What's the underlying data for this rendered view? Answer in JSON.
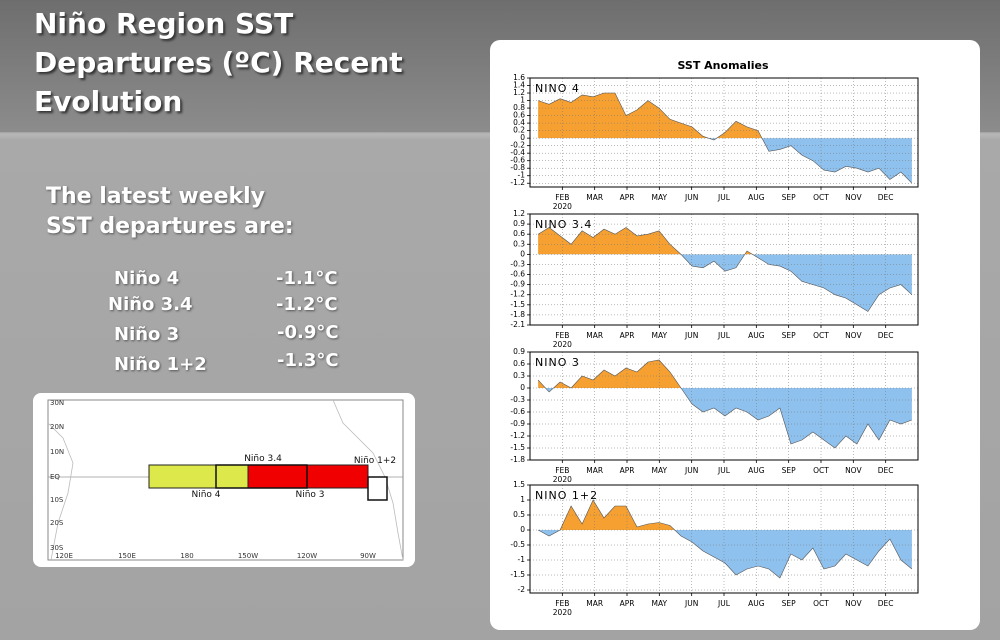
{
  "title": "Niño Region SST Departures (ºC) Recent Evolution",
  "intro": "The latest weekly SST departures are:",
  "table": {
    "rows": [
      [
        "Niño 4",
        "-1.1°C"
      ],
      [
        "Niño 3.4",
        "-1.2°C"
      ],
      [
        "Niño 3",
        "-0.9°C"
      ],
      [
        "Niño 1+2",
        "-1.3°C"
      ]
    ]
  },
  "map": {
    "lat_labels": [
      "30N",
      "20N",
      "10N",
      "EQ",
      "10S",
      "20S",
      "30S"
    ],
    "lon_labels": [
      "120E",
      "150E",
      "180",
      "150W",
      "120W",
      "90W"
    ],
    "regions": [
      "Niño 4",
      "Niño 3.4",
      "Niño 3",
      "Niño 1+2"
    ]
  },
  "panel_title": "SST Anomalies",
  "chart_data": [
    {
      "type": "area",
      "title": "NINO 4",
      "x_sublabel": "2020",
      "color_positive": "#f5a031",
      "color_negative": "#8fc1ef",
      "grid": true,
      "x": [
        0.25,
        0.59,
        0.93,
        1.27,
        1.61,
        1.95,
        2.29,
        2.63,
        2.97,
        3.31,
        3.65,
        3.99,
        4.33,
        4.67,
        5.01,
        5.35,
        5.69,
        6.03,
        6.37,
        6.71,
        7.05,
        7.39,
        7.73,
        8.07,
        8.41,
        8.75,
        9.09,
        9.43,
        9.77,
        10.11,
        10.45,
        10.79,
        11.13,
        11.47,
        11.81
      ],
      "values": [
        1.0,
        0.9,
        1.05,
        0.95,
        1.15,
        1.1,
        1.2,
        1.2,
        0.6,
        0.75,
        1.0,
        0.8,
        0.5,
        0.4,
        0.3,
        0.05,
        -0.05,
        0.15,
        0.45,
        0.3,
        0.2,
        -0.35,
        -0.3,
        -0.2,
        -0.45,
        -0.6,
        -0.85,
        -0.9,
        -0.75,
        -0.8,
        -0.9,
        -0.8,
        -1.1,
        -0.9,
        -1.2
      ],
      "xlim": [
        0,
        12
      ],
      "xticks": [
        {
          "value": 1,
          "label": "FEB"
        },
        {
          "value": 2,
          "label": "MAR"
        },
        {
          "value": 3,
          "label": "APR"
        },
        {
          "value": 4,
          "label": "MAY"
        },
        {
          "value": 5,
          "label": "JUN"
        },
        {
          "value": 6,
          "label": "JUL"
        },
        {
          "value": 7,
          "label": "AUG"
        },
        {
          "value": 8,
          "label": "SEP"
        },
        {
          "value": 9,
          "label": "OCT"
        },
        {
          "value": 10,
          "label": "NOV"
        },
        {
          "value": 11,
          "label": "DEC"
        }
      ],
      "ylim": [
        -1.3,
        1.6
      ],
      "yticks": [
        1.6,
        1.4,
        1.2,
        1,
        0.8,
        0.6,
        0.4,
        0.2,
        0,
        -0.2,
        -0.4,
        -0.6,
        -0.8,
        -1,
        -1.2
      ]
    },
    {
      "type": "area",
      "title": "NINO 3.4",
      "x_sublabel": "2020",
      "color_positive": "#f5a031",
      "color_negative": "#8fc1ef",
      "grid": true,
      "x": [
        0.25,
        0.59,
        0.93,
        1.27,
        1.61,
        1.95,
        2.29,
        2.63,
        2.97,
        3.31,
        3.65,
        3.99,
        4.33,
        4.67,
        5.01,
        5.35,
        5.69,
        6.03,
        6.37,
        6.71,
        7.05,
        7.39,
        7.73,
        8.07,
        8.41,
        8.75,
        9.09,
        9.43,
        9.77,
        10.11,
        10.45,
        10.79,
        11.13,
        11.47,
        11.81
      ],
      "values": [
        0.6,
        0.8,
        0.55,
        0.3,
        0.7,
        0.5,
        0.75,
        0.6,
        0.8,
        0.55,
        0.6,
        0.7,
        0.3,
        0.0,
        -0.35,
        -0.4,
        -0.2,
        -0.5,
        -0.4,
        0.1,
        -0.1,
        -0.3,
        -0.35,
        -0.5,
        -0.8,
        -0.9,
        -1.0,
        -1.2,
        -1.3,
        -1.5,
        -1.7,
        -1.2,
        -1.0,
        -0.9,
        -1.2
      ],
      "xlim": [
        0,
        12
      ],
      "xticks": [
        {
          "value": 1,
          "label": "FEB"
        },
        {
          "value": 2,
          "label": "MAR"
        },
        {
          "value": 3,
          "label": "APR"
        },
        {
          "value": 4,
          "label": "MAY"
        },
        {
          "value": 5,
          "label": "JUN"
        },
        {
          "value": 6,
          "label": "JUL"
        },
        {
          "value": 7,
          "label": "AUG"
        },
        {
          "value": 8,
          "label": "SEP"
        },
        {
          "value": 9,
          "label": "OCT"
        },
        {
          "value": 10,
          "label": "NOV"
        },
        {
          "value": 11,
          "label": "DEC"
        }
      ],
      "ylim": [
        -2.1,
        1.2
      ],
      "yticks": [
        1.2,
        0.9,
        0.6,
        0.3,
        0,
        -0.3,
        -0.6,
        -0.9,
        -1.2,
        -1.5,
        -1.8,
        -2.1
      ]
    },
    {
      "type": "area",
      "title": "NINO 3",
      "x_sublabel": "2020",
      "color_positive": "#f5a031",
      "color_negative": "#8fc1ef",
      "grid": true,
      "x": [
        0.25,
        0.59,
        0.93,
        1.27,
        1.61,
        1.95,
        2.29,
        2.63,
        2.97,
        3.31,
        3.65,
        3.99,
        4.33,
        4.67,
        5.01,
        5.35,
        5.69,
        6.03,
        6.37,
        6.71,
        7.05,
        7.39,
        7.73,
        8.07,
        8.41,
        8.75,
        9.09,
        9.43,
        9.77,
        10.11,
        10.45,
        10.79,
        11.13,
        11.47,
        11.81
      ],
      "values": [
        0.2,
        -0.1,
        0.15,
        0.0,
        0.3,
        0.2,
        0.45,
        0.3,
        0.5,
        0.4,
        0.65,
        0.7,
        0.4,
        0.0,
        -0.4,
        -0.6,
        -0.5,
        -0.7,
        -0.5,
        -0.6,
        -0.8,
        -0.7,
        -0.5,
        -1.4,
        -1.3,
        -1.1,
        -1.3,
        -1.5,
        -1.2,
        -1.4,
        -0.9,
        -1.3,
        -0.8,
        -0.9,
        -0.8
      ],
      "xlim": [
        0,
        12
      ],
      "xticks": [
        {
          "value": 1,
          "label": "FEB"
        },
        {
          "value": 2,
          "label": "MAR"
        },
        {
          "value": 3,
          "label": "APR"
        },
        {
          "value": 4,
          "label": "MAY"
        },
        {
          "value": 5,
          "label": "JUN"
        },
        {
          "value": 6,
          "label": "JUL"
        },
        {
          "value": 7,
          "label": "AUG"
        },
        {
          "value": 8,
          "label": "SEP"
        },
        {
          "value": 9,
          "label": "OCT"
        },
        {
          "value": 10,
          "label": "NOV"
        },
        {
          "value": 11,
          "label": "DEC"
        }
      ],
      "ylim": [
        -1.8,
        0.9
      ],
      "yticks": [
        0.9,
        0.6,
        0.3,
        0,
        -0.3,
        -0.6,
        -0.9,
        -1.2,
        -1.5,
        -1.8
      ]
    },
    {
      "type": "area",
      "title": "NINO 1+2",
      "x_sublabel": "2020",
      "color_positive": "#f5a031",
      "color_negative": "#8fc1ef",
      "grid": true,
      "x": [
        0.25,
        0.59,
        0.93,
        1.27,
        1.61,
        1.95,
        2.29,
        2.63,
        2.97,
        3.31,
        3.65,
        3.99,
        4.33,
        4.67,
        5.01,
        5.35,
        5.69,
        6.03,
        6.37,
        6.71,
        7.05,
        7.39,
        7.73,
        8.07,
        8.41,
        8.75,
        9.09,
        9.43,
        9.77,
        10.11,
        10.45,
        10.79,
        11.13,
        11.47,
        11.81
      ],
      "values": [
        0,
        -0.2,
        0.0,
        0.8,
        0.2,
        1.0,
        0.4,
        0.8,
        0.8,
        0.1,
        0.2,
        0.25,
        0.15,
        -0.2,
        -0.4,
        -0.7,
        -0.9,
        -1.1,
        -1.5,
        -1.3,
        -1.2,
        -1.3,
        -1.6,
        -0.8,
        -1.0,
        -0.6,
        -1.3,
        -1.2,
        -0.8,
        -1.0,
        -1.2,
        -0.7,
        -0.3,
        -1.0,
        -1.3
      ],
      "xlim": [
        0,
        12
      ],
      "xticks": [
        {
          "value": 1,
          "label": "FEB"
        },
        {
          "value": 2,
          "label": "MAR"
        },
        {
          "value": 3,
          "label": "APR"
        },
        {
          "value": 4,
          "label": "MAY"
        },
        {
          "value": 5,
          "label": "JUN"
        },
        {
          "value": 6,
          "label": "JUL"
        },
        {
          "value": 7,
          "label": "AUG"
        },
        {
          "value": 8,
          "label": "SEP"
        },
        {
          "value": 9,
          "label": "OCT"
        },
        {
          "value": 10,
          "label": "NOV"
        },
        {
          "value": 11,
          "label": "DEC"
        }
      ],
      "ylim": [
        -2.1,
        1.5
      ],
      "yticks": [
        1.5,
        1,
        0.5,
        0,
        -0.5,
        -1,
        -1.5,
        -2
      ]
    }
  ]
}
